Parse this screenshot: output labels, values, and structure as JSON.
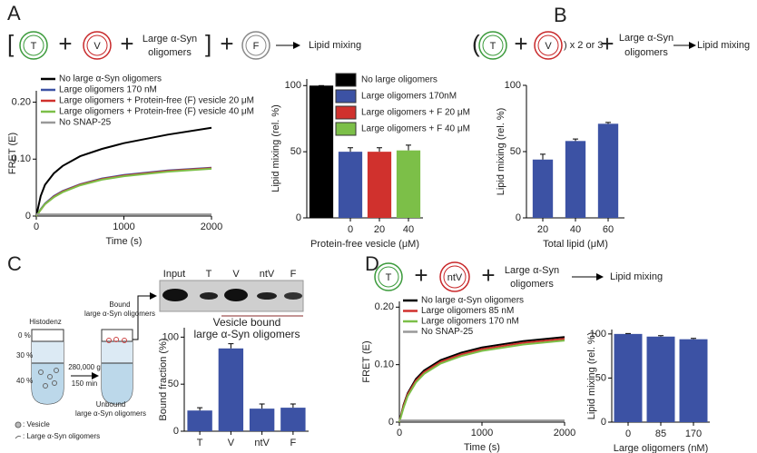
{
  "panel_labels": [
    "A",
    "B",
    "C",
    "D"
  ],
  "schemes": {
    "A": [
      "[",
      "T",
      "+",
      "V",
      "+",
      "Large α-Syn",
      "oligomers",
      "]",
      "+",
      "F",
      "Lipid mixing"
    ],
    "B": [
      "(",
      "T",
      "+",
      "V",
      ") x 2 or 3",
      "+",
      "Large α-Syn",
      "oligomers",
      "Lipid mixing"
    ],
    "D": [
      "T",
      "+",
      "ntV",
      "+",
      "Large α-Syn",
      "oligomers",
      "Lipid mixing"
    ]
  },
  "c_diagram": {
    "gel_labels": [
      "Input",
      "T",
      "V",
      "ntV",
      "F"
    ],
    "histodenz": "Histodenz",
    "percent_labels": [
      "0 %",
      "30 %",
      "40 %"
    ],
    "speed": "280,000 g",
    "duration": "150 min",
    "bound": [
      "Bound",
      "large α-Syn oligomers"
    ],
    "unbound": [
      "Unbound",
      "large α-Syn oligomers"
    ],
    "legend": [
      ": Vesicle",
      ": Large α-Syn oligomers"
    ]
  },
  "chart_data": [
    {
      "type": "line",
      "x": [
        0,
        50,
        100,
        200,
        300,
        500,
        750,
        1000,
        1500,
        2000
      ],
      "xlim": [
        0,
        2000
      ],
      "xticks": [
        0,
        1000,
        2000
      ],
      "ylim": [
        0,
        0.22
      ],
      "yticks": [
        0,
        {
          "value": 0.1,
          "label": "0.10"
        },
        {
          "value": 0.2,
          "label": "0.20"
        }
      ],
      "xlabel": "Time (s)",
      "ylabel": "FRET (E)",
      "series": [
        {
          "name": "No large α-Syn oligomers",
          "color": "#000000",
          "values": [
            0,
            0.035,
            0.055,
            0.075,
            0.088,
            0.105,
            0.118,
            0.128,
            0.143,
            0.155
          ]
        },
        {
          "name": "Large oligomers 170 nM",
          "color": "#3c52a4",
          "values": [
            0,
            0.012,
            0.022,
            0.035,
            0.044,
            0.056,
            0.066,
            0.072,
            0.08,
            0.085
          ]
        },
        {
          "name": "Large oligomers + Protein-free (F) vesicle 20 μM",
          "color": "#d0312d",
          "values": [
            0,
            0.011,
            0.021,
            0.034,
            0.043,
            0.055,
            0.065,
            0.071,
            0.079,
            0.084
          ]
        },
        {
          "name": "Large oligomers + Protein-free (F) vesicle 40 μM",
          "color": "#7cbf48",
          "values": [
            0,
            0.011,
            0.021,
            0.033,
            0.042,
            0.054,
            0.064,
            0.07,
            0.078,
            0.083
          ]
        },
        {
          "name": "No SNAP-25",
          "color": "#999999",
          "values": [
            0.003,
            0.003,
            0.003,
            0.003,
            0.003,
            0.003,
            0.003,
            0.003,
            0.003,
            0.003
          ]
        }
      ]
    },
    {
      "type": "bar",
      "categories": [
        null,
        "0",
        "20",
        "40"
      ],
      "values": [
        100,
        50,
        50,
        51
      ],
      "errors": [
        0,
        3,
        3,
        4
      ],
      "colors": [
        "#000000",
        "#3c52a4",
        "#d0312d",
        "#7cbf48"
      ],
      "legend": [
        "No large oligomers",
        "Large oligomers 170nM",
        "Large oligomers + F 20 μM",
        "Large oligomers + F 40 μM"
      ],
      "ylim": [
        0,
        105
      ],
      "yticks": [
        0,
        50,
        100
      ],
      "xlabel": "Protein-free vesicle (μM)",
      "ylabel": "Lipid mixing (rel. %)"
    },
    {
      "type": "bar",
      "categories": [
        "20",
        "40",
        "60"
      ],
      "values": [
        44,
        58,
        71
      ],
      "errors": [
        4,
        1.5,
        1
      ],
      "color": "#3c52a4",
      "ylim": [
        0,
        100
      ],
      "yticks": [
        0,
        50,
        100
      ],
      "xlabel": "Total lipid (μM)",
      "ylabel": "Lipid mixing (rel. %)"
    },
    {
      "type": "bar",
      "title_lines": [
        "Vesicle bound",
        "large α-Syn oligomers"
      ],
      "categories": [
        "T",
        "V",
        "ntV",
        "F"
      ],
      "values": [
        22,
        88,
        24,
        25
      ],
      "errors": [
        3,
        5,
        5,
        4
      ],
      "color": "#3c52a4",
      "ylim": [
        0,
        110
      ],
      "yticks": [
        0,
        50,
        100
      ],
      "ylabel": "Bound fraction (%)"
    },
    {
      "type": "line",
      "x": [
        0,
        50,
        100,
        200,
        300,
        500,
        750,
        1000,
        1500,
        2000
      ],
      "xlim": [
        0,
        2000
      ],
      "xticks": [
        0,
        1000,
        2000
      ],
      "ylim": [
        0,
        0.21
      ],
      "yticks": [
        0,
        {
          "value": 0.1,
          "label": "0.10"
        },
        {
          "value": 0.2,
          "label": "0.20"
        }
      ],
      "xlabel": "Time (s)",
      "ylabel": "FRET (E)",
      "series": [
        {
          "name": "No large α-Syn oligomers",
          "color": "#000000",
          "values": [
            0,
            0.03,
            0.05,
            0.075,
            0.09,
            0.108,
            0.121,
            0.13,
            0.141,
            0.148
          ]
        },
        {
          "name": "Large oligomers 85 nM",
          "color": "#d0312d",
          "values": [
            0,
            0.028,
            0.048,
            0.072,
            0.087,
            0.105,
            0.118,
            0.127,
            0.138,
            0.145
          ]
        },
        {
          "name": "Large oligomers 170 nM",
          "color": "#7cbf48",
          "values": [
            0,
            0.025,
            0.045,
            0.069,
            0.084,
            0.102,
            0.115,
            0.124,
            0.135,
            0.142
          ]
        },
        {
          "name": "No SNAP-25",
          "color": "#999999",
          "values": [
            0.003,
            0.003,
            0.003,
            0.003,
            0.003,
            0.003,
            0.003,
            0.003,
            0.003,
            0.003
          ]
        }
      ]
    },
    {
      "type": "bar",
      "categories": [
        "0",
        "85",
        "170"
      ],
      "values": [
        100,
        97,
        94
      ],
      "errors": [
        0.5,
        1,
        1
      ],
      "color": "#3c52a4",
      "ylim": [
        0,
        105
      ],
      "yticks": [
        0,
        50,
        100
      ],
      "xlabel": "Large oligomers (nM)",
      "ylabel": "Lipid mixing (rel. %)"
    }
  ]
}
